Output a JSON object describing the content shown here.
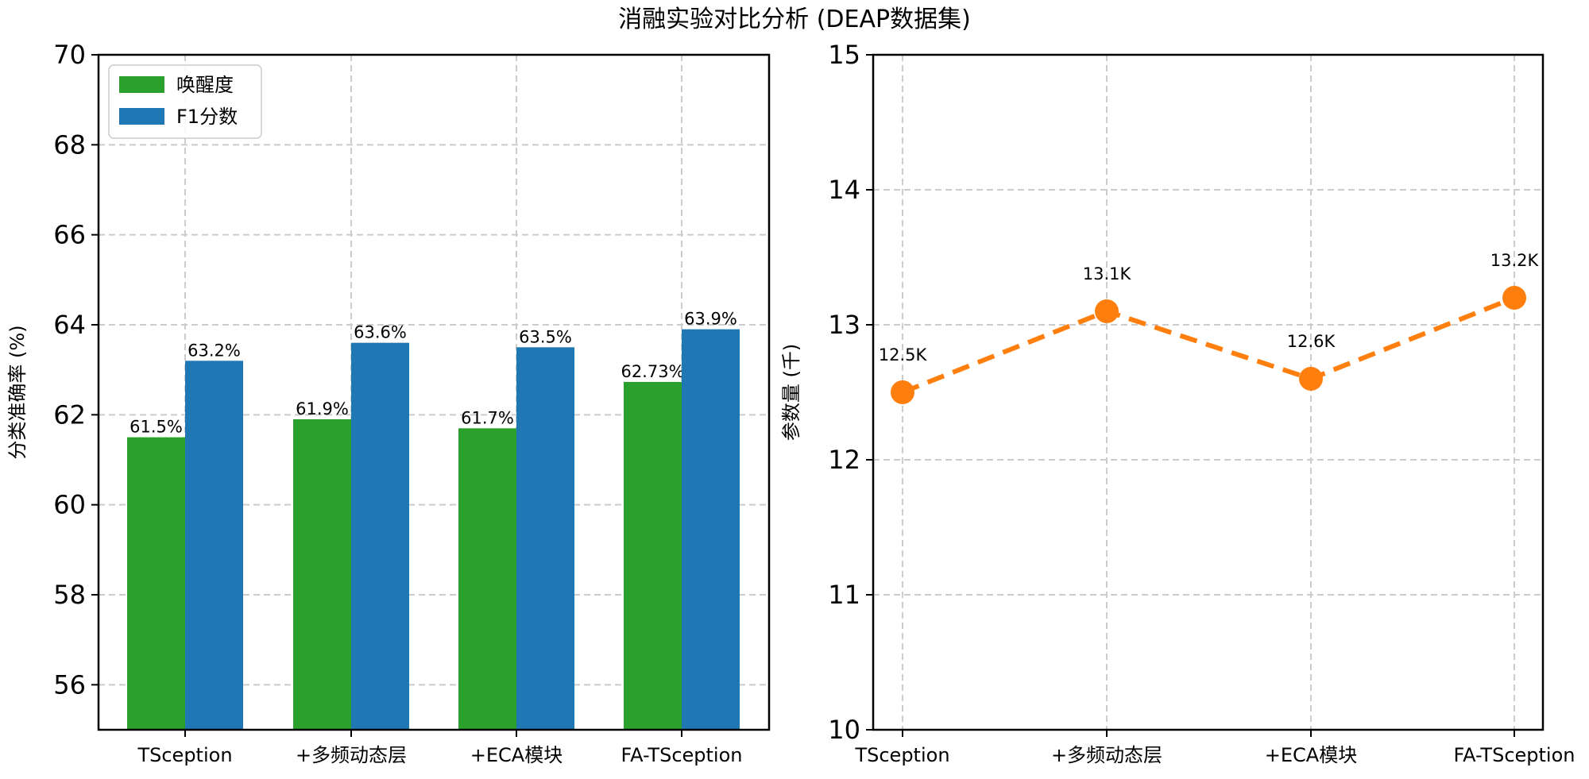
{
  "figure": {
    "title": "消融实验对比分析 (DEAP数据集)"
  },
  "chart_data": [
    {
      "type": "bar",
      "title": "",
      "xlabel": "",
      "ylabel": "分类准确率 (%)",
      "ylim": [
        55,
        70
      ],
      "yticks": [
        56,
        58,
        60,
        62,
        64,
        66,
        68,
        70
      ],
      "grid": true,
      "legend_position": "top-left",
      "categories": [
        "TSception",
        "+多频动态层",
        "+ECA模块",
        "FA-TSception"
      ],
      "series": [
        {
          "name": "唤醒度",
          "color": "#2ca02c",
          "values": [
            61.5,
            61.9,
            61.7,
            62.73
          ],
          "labels": [
            "61.5%",
            "61.9%",
            "61.7%",
            "62.73%"
          ]
        },
        {
          "name": "F1分数",
          "color": "#1f77b4",
          "values": [
            63.2,
            63.6,
            63.5,
            63.9
          ],
          "labels": [
            "63.2%",
            "63.6%",
            "63.5%",
            "63.9%"
          ]
        }
      ]
    },
    {
      "type": "line",
      "title": "",
      "xlabel": "",
      "ylabel": "参数量 (千)",
      "ylim": [
        10,
        15
      ],
      "yticks": [
        10,
        11,
        12,
        13,
        14,
        15
      ],
      "grid": true,
      "line_style": "dashed",
      "marker": "circle",
      "categories": [
        "TSception",
        "+多频动态层",
        "+ECA模块",
        "FA-TSception"
      ],
      "series": [
        {
          "name": "参数量",
          "color": "#ff7f0e",
          "values": [
            12.5,
            13.1,
            12.6,
            13.2
          ],
          "labels": [
            "12.5K",
            "13.1K",
            "12.6K",
            "13.2K"
          ]
        }
      ]
    }
  ]
}
